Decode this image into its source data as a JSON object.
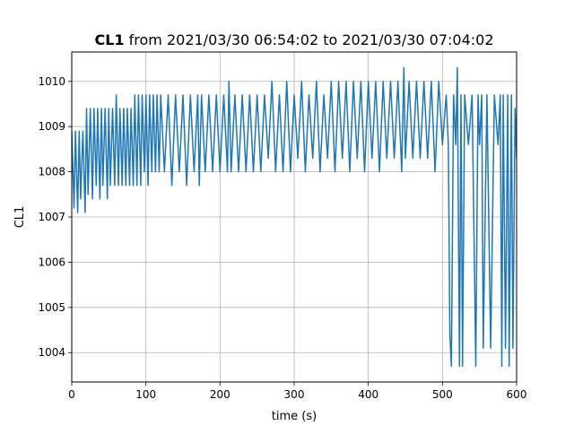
{
  "chart_data": {
    "type": "line",
    "title_bold": "CL1",
    "title_rest": " from 2021/03/30 06:54:02 to 2021/03/30 07:04:02",
    "xlabel": "time (s)",
    "ylabel": "CL1",
    "xlim": [
      0,
      600
    ],
    "ylim": [
      1003.35,
      1010.65
    ],
    "xticks": [
      0,
      100,
      200,
      300,
      400,
      500,
      600
    ],
    "yticks": [
      1004,
      1005,
      1006,
      1007,
      1008,
      1009,
      1010
    ],
    "grid": true,
    "line_color": "#1f77b4",
    "series": [
      {
        "values_note": "",
        "x": [
          0,
          3,
          5,
          8,
          10,
          12,
          15,
          18,
          20,
          22,
          25,
          28,
          30,
          33,
          35,
          38,
          40,
          42,
          45,
          48,
          50,
          52,
          55,
          58,
          60,
          63,
          65,
          68,
          70,
          73,
          75,
          78,
          80,
          83,
          85,
          88,
          90,
          93,
          95,
          98,
          100,
          103,
          105,
          108,
          110,
          113,
          115,
          118,
          120,
          125,
          130,
          135,
          140,
          145,
          150,
          155,
          160,
          165,
          170,
          172,
          175,
          180,
          185,
          190,
          195,
          200,
          205,
          210,
          212,
          215,
          220,
          225,
          230,
          235,
          240,
          245,
          250,
          255,
          260,
          265,
          270,
          275,
          280,
          285,
          290,
          295,
          300,
          305,
          310,
          315,
          320,
          325,
          330,
          335,
          340,
          345,
          350,
          355,
          360,
          365,
          370,
          375,
          380,
          385,
          390,
          395,
          400,
          405,
          410,
          415,
          420,
          425,
          430,
          435,
          440,
          445,
          448,
          450,
          455,
          460,
          465,
          470,
          475,
          480,
          485,
          490,
          495,
          500,
          505,
          508,
          510,
          512,
          515,
          518,
          520,
          523,
          525,
          527,
          530,
          535,
          540,
          545,
          548,
          550,
          553,
          555,
          560,
          565,
          570,
          575,
          578,
          580,
          582,
          585,
          588,
          590,
          593,
          595,
          598,
          600
        ],
        "y": [
          1008.9,
          1007.2,
          1008.9,
          1007.1,
          1008.9,
          1007.4,
          1008.9,
          1007.1,
          1009.4,
          1007.5,
          1009.4,
          1007.4,
          1009.4,
          1007.7,
          1009.4,
          1007.4,
          1009.4,
          1007.7,
          1009.4,
          1007.4,
          1009.4,
          1007.7,
          1009.4,
          1007.7,
          1009.7,
          1007.7,
          1009.4,
          1007.7,
          1009.4,
          1007.7,
          1009.4,
          1007.7,
          1009.4,
          1007.7,
          1009.7,
          1007.7,
          1009.7,
          1007.7,
          1009.7,
          1008.0,
          1009.7,
          1007.7,
          1009.7,
          1008.0,
          1009.7,
          1008.0,
          1009.7,
          1008.0,
          1009.7,
          1008.0,
          1009.7,
          1007.7,
          1009.7,
          1008.0,
          1009.7,
          1007.7,
          1009.7,
          1008.0,
          1009.7,
          1007.7,
          1009.7,
          1008.0,
          1009.7,
          1008.0,
          1009.7,
          1008.0,
          1009.7,
          1008.0,
          1010.0,
          1008.0,
          1009.7,
          1008.0,
          1009.7,
          1008.0,
          1009.7,
          1008.0,
          1009.7,
          1008.0,
          1009.7,
          1008.3,
          1010.0,
          1008.0,
          1009.7,
          1008.0,
          1010.0,
          1008.0,
          1009.7,
          1008.3,
          1010.0,
          1008.0,
          1009.7,
          1008.3,
          1010.0,
          1008.0,
          1009.7,
          1008.3,
          1010.0,
          1008.0,
          1010.0,
          1008.3,
          1010.0,
          1008.0,
          1010.0,
          1008.3,
          1010.0,
          1008.0,
          1010.0,
          1008.3,
          1010.0,
          1008.0,
          1010.0,
          1008.3,
          1010.0,
          1008.3,
          1010.0,
          1008.0,
          1010.3,
          1008.3,
          1010.0,
          1008.3,
          1010.0,
          1008.3,
          1010.0,
          1008.3,
          1010.0,
          1008.0,
          1010.0,
          1008.6,
          1009.7,
          1008.6,
          1004.4,
          1003.7,
          1009.7,
          1008.6,
          1010.3,
          1003.7,
          1009.7,
          1003.7,
          1009.7,
          1008.6,
          1009.7,
          1003.7,
          1009.7,
          1008.6,
          1009.7,
          1004.1,
          1009.7,
          1004.1,
          1009.7,
          1008.6,
          1009.7,
          1003.7,
          1009.7,
          1004.1,
          1009.7,
          1003.7,
          1009.7,
          1004.1,
          1009.4,
          1008.3
        ]
      }
    ]
  }
}
